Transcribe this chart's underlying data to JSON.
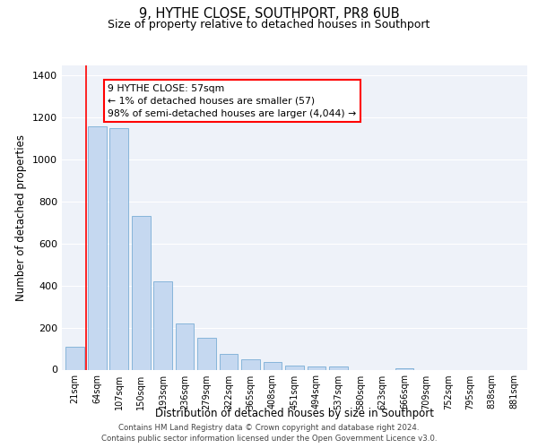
{
  "title": "9, HYTHE CLOSE, SOUTHPORT, PR8 6UB",
  "subtitle": "Size of property relative to detached houses in Southport",
  "xlabel": "Distribution of detached houses by size in Southport",
  "ylabel": "Number of detached properties",
  "categories": [
    "21sqm",
    "64sqm",
    "107sqm",
    "150sqm",
    "193sqm",
    "236sqm",
    "279sqm",
    "322sqm",
    "365sqm",
    "408sqm",
    "451sqm",
    "494sqm",
    "537sqm",
    "580sqm",
    "623sqm",
    "666sqm",
    "709sqm",
    "752sqm",
    "795sqm",
    "838sqm",
    "881sqm"
  ],
  "values": [
    110,
    1160,
    1150,
    730,
    420,
    220,
    150,
    75,
    50,
    35,
    20,
    15,
    15,
    0,
    0,
    5,
    0,
    0,
    0,
    0,
    0
  ],
  "bar_color": "#c5d8f0",
  "bar_edge_color": "#7aaed6",
  "annotation_box_text": "9 HYTHE CLOSE: 57sqm\n← 1% of detached houses are smaller (57)\n98% of semi-detached houses are larger (4,044) →",
  "ylim": [
    0,
    1450
  ],
  "yticks": [
    0,
    200,
    400,
    600,
    800,
    1000,
    1200,
    1400
  ],
  "footer_line1": "Contains HM Land Registry data © Crown copyright and database right 2024.",
  "footer_line2": "Contains public sector information licensed under the Open Government Licence v3.0.",
  "bg_color": "#eef2f9",
  "grid_color": "#ffffff"
}
